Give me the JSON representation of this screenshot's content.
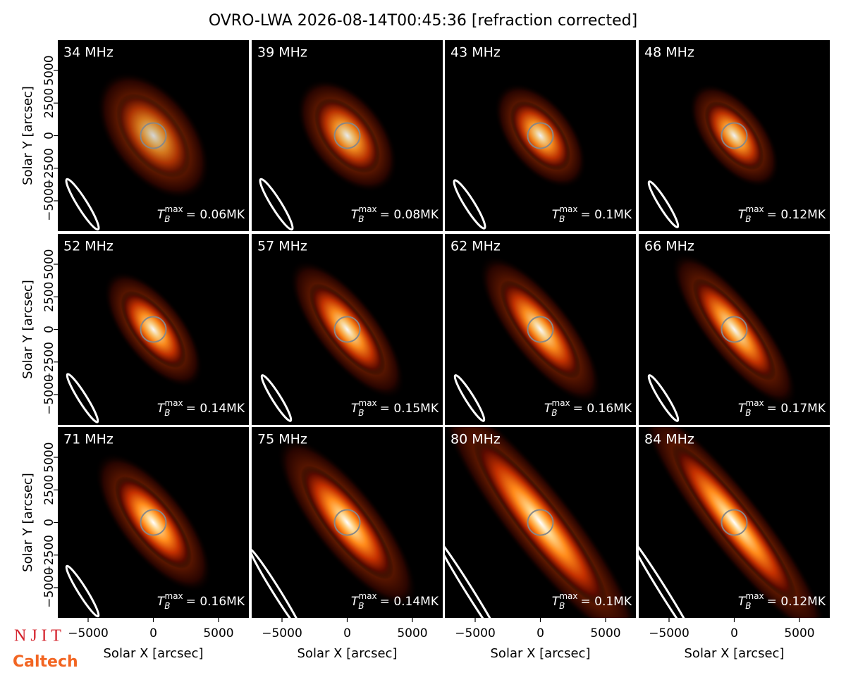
{
  "title": "OVRO-LWA 2026-08-14T00:45:36 [refraction corrected]",
  "logos": [
    "N J I T",
    "Caltech"
  ],
  "chart_data": [
    {
      "type": "image",
      "title": "34 MHz",
      "annotation": {
        "symbol": "T",
        "subscript": "B",
        "superscript": "max",
        "text": "= 0.06MK"
      },
      "xlim": [
        -7325,
        7325
      ],
      "ylim": [
        -7325,
        7325
      ],
      "yticks": [
        {
          "value": -5000,
          "label": "−5000"
        },
        {
          "value": -2500,
          "label": "−2500"
        },
        0,
        2500,
        5000
      ],
      "ylabel": "Solar Y [arcsec]"
    },
    {
      "type": "image",
      "title": "39 MHz",
      "annotation": {
        "symbol": "T",
        "subscript": "B",
        "superscript": "max",
        "text": "= 0.08MK"
      },
      "xlim": [
        -7325,
        7325
      ],
      "ylim": [
        -7325,
        7325
      ]
    },
    {
      "type": "image",
      "title": "43 MHz",
      "annotation": {
        "symbol": "T",
        "subscript": "B",
        "superscript": "max",
        "text": "= 0.1MK"
      },
      "xlim": [
        -7325,
        7325
      ],
      "ylim": [
        -7325,
        7325
      ]
    },
    {
      "type": "image",
      "title": "48 MHz",
      "annotation": {
        "symbol": "T",
        "subscript": "B",
        "superscript": "max",
        "text": "= 0.12MK"
      },
      "xlim": [
        -7325,
        7325
      ],
      "ylim": [
        -7325,
        7325
      ]
    },
    {
      "type": "image",
      "title": "52 MHz",
      "annotation": {
        "symbol": "T",
        "subscript": "B",
        "superscript": "max",
        "text": "= 0.14MK"
      },
      "xlim": [
        -7325,
        7325
      ],
      "ylim": [
        -7325,
        7325
      ],
      "yticks": [
        {
          "value": -5000,
          "label": "−5000"
        },
        {
          "value": -2500,
          "label": "−2500"
        },
        0,
        2500,
        5000
      ],
      "ylabel": "Solar Y [arcsec]"
    },
    {
      "type": "image",
      "title": "57 MHz",
      "annotation": {
        "symbol": "T",
        "subscript": "B",
        "superscript": "max",
        "text": "= 0.15MK"
      },
      "xlim": [
        -7325,
        7325
      ],
      "ylim": [
        -7325,
        7325
      ]
    },
    {
      "type": "image",
      "title": "62 MHz",
      "annotation": {
        "symbol": "T",
        "subscript": "B",
        "superscript": "max",
        "text": "= 0.16MK"
      },
      "xlim": [
        -7325,
        7325
      ],
      "ylim": [
        -7325,
        7325
      ]
    },
    {
      "type": "image",
      "title": "66 MHz",
      "annotation": {
        "symbol": "T",
        "subscript": "B",
        "superscript": "max",
        "text": "= 0.17MK"
      },
      "xlim": [
        -7325,
        7325
      ],
      "ylim": [
        -7325,
        7325
      ]
    },
    {
      "type": "image",
      "title": "71 MHz",
      "annotation": {
        "symbol": "T",
        "subscript": "B",
        "superscript": "max",
        "text": "= 0.16MK"
      },
      "xlim": [
        -7325,
        7325
      ],
      "ylim": [
        -7325,
        7325
      ],
      "xticks": [
        {
          "value": -5000,
          "label": "−5000"
        },
        0,
        5000
      ],
      "xlabel": "Solar X [arcsec]",
      "yticks": [
        {
          "value": -5000,
          "label": "−5000"
        },
        {
          "value": -2500,
          "label": "−2500"
        },
        0,
        2500,
        5000
      ],
      "ylabel": "Solar Y [arcsec]"
    },
    {
      "type": "image",
      "title": "75 MHz",
      "annotation": {
        "symbol": "T",
        "subscript": "B",
        "superscript": "max",
        "text": "= 0.14MK"
      },
      "xlim": [
        -7325,
        7325
      ],
      "ylim": [
        -7325,
        7325
      ],
      "xticks": [
        {
          "value": -5000,
          "label": "−5000"
        },
        0,
        5000
      ],
      "xlabel": "Solar X [arcsec]"
    },
    {
      "type": "image",
      "title": "80 MHz",
      "annotation": {
        "symbol": "T",
        "subscript": "B",
        "superscript": "max",
        "text": "= 0.1MK"
      },
      "xlim": [
        -7325,
        7325
      ],
      "ylim": [
        -7325,
        7325
      ],
      "xticks": [
        {
          "value": -5000,
          "label": "−5000"
        },
        0,
        5000
      ],
      "xlabel": "Solar X [arcsec]"
    },
    {
      "type": "image",
      "title": "84 MHz",
      "annotation": {
        "symbol": "T",
        "subscript": "B",
        "superscript": "max",
        "text": "= 0.12MK"
      },
      "xlim": [
        -7325,
        7325
      ],
      "ylim": [
        -7325,
        7325
      ],
      "xticks": [
        {
          "value": -5000,
          "label": "−5000"
        },
        0,
        5000
      ],
      "xlabel": "Solar X [arcsec]"
    }
  ]
}
